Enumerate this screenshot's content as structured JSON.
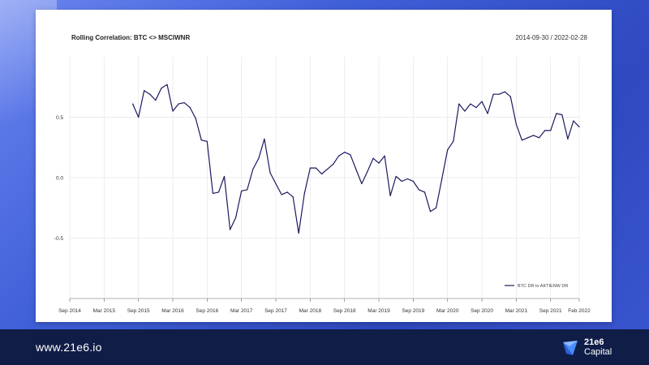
{
  "slide": {
    "footer_url": "www.21e6.io",
    "logo_line1": "21e6",
    "logo_line2": "Capital",
    "background_color": "#3b5bd6",
    "footer_color": "#0f1d47"
  },
  "chart_data": {
    "type": "line",
    "title": "Rolling Correlation: BTC <> MSCIWNR",
    "date_range": "2014-09-30 / 2022-02-28",
    "xlabel": "",
    "ylabel": "",
    "x_ticks": [
      "Sep 2014",
      "Mar 2015",
      "Sep 2015",
      "Mar 2016",
      "Sep 2016",
      "Mar 2017",
      "Sep 2017",
      "Mar 2018",
      "Sep 2018",
      "Mar 2019",
      "Sep 2019",
      "Mar 2020",
      "Sep 2020",
      "Mar 2021",
      "Sep 2021",
      "Feb 2022"
    ],
    "y_ticks": [
      "0.5",
      "0.0",
      "-0.5"
    ],
    "xlim": [
      "2014-09",
      "2022-02"
    ],
    "ylim": [
      -1.0,
      1.0
    ],
    "grid": true,
    "legend_position": "bottom-right",
    "line_color": "#1a1a5e",
    "series": [
      {
        "name": "BTC DR to AKTIENW DR",
        "x": [
          "2015-08",
          "2015-09",
          "2015-10",
          "2015-11",
          "2015-12",
          "2016-01",
          "2016-02",
          "2016-03",
          "2016-04",
          "2016-05",
          "2016-06",
          "2016-07",
          "2016-08",
          "2016-09",
          "2016-10",
          "2016-11",
          "2016-12",
          "2017-01",
          "2017-02",
          "2017-03",
          "2017-04",
          "2017-05",
          "2017-06",
          "2017-07",
          "2017-08",
          "2017-09",
          "2017-10",
          "2017-11",
          "2017-12",
          "2018-01",
          "2018-02",
          "2018-03",
          "2018-04",
          "2018-05",
          "2018-06",
          "2018-07",
          "2018-08",
          "2018-09",
          "2018-10",
          "2018-11",
          "2018-12",
          "2019-01",
          "2019-02",
          "2019-03",
          "2019-04",
          "2019-05",
          "2019-06",
          "2019-07",
          "2019-08",
          "2019-09",
          "2019-10",
          "2019-11",
          "2019-12",
          "2020-01",
          "2020-02",
          "2020-03",
          "2020-04",
          "2020-05",
          "2020-06",
          "2020-07",
          "2020-08",
          "2020-09",
          "2020-10",
          "2020-11",
          "2020-12",
          "2021-01",
          "2021-02",
          "2021-03",
          "2021-04",
          "2021-05",
          "2021-06",
          "2021-07",
          "2021-08",
          "2021-09",
          "2021-10",
          "2021-11",
          "2021-12",
          "2022-01",
          "2022-02"
        ],
        "values": [
          0.61,
          0.5,
          0.72,
          0.69,
          0.64,
          0.74,
          0.77,
          0.55,
          0.61,
          0.62,
          0.58,
          0.49,
          0.31,
          0.3,
          -0.13,
          -0.12,
          0.01,
          -0.43,
          -0.33,
          -0.11,
          -0.1,
          0.07,
          0.16,
          0.32,
          0.04,
          -0.05,
          -0.14,
          -0.12,
          -0.16,
          -0.46,
          -0.13,
          0.08,
          0.08,
          0.03,
          0.07,
          0.11,
          0.18,
          0.21,
          0.19,
          0.07,
          -0.05,
          0.05,
          0.16,
          0.12,
          0.18,
          -0.15,
          0.01,
          -0.03,
          -0.01,
          -0.03,
          -0.1,
          -0.12,
          -0.28,
          -0.25,
          -0.01,
          0.23,
          0.3,
          0.61,
          0.55,
          0.61,
          0.58,
          0.63,
          0.53,
          0.69,
          0.69,
          0.71,
          0.67,
          0.44,
          0.31,
          0.33,
          0.35,
          0.33,
          0.39,
          0.39,
          0.53,
          0.52,
          0.32,
          0.47,
          0.42
        ]
      }
    ]
  }
}
